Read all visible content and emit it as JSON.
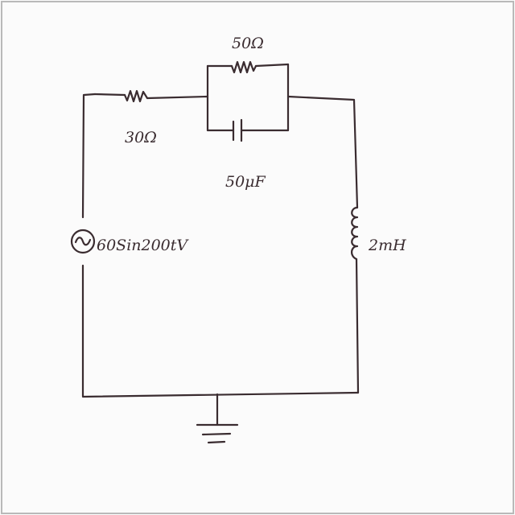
{
  "diagram": {
    "ink_color": "#3a2c30",
    "frame_color": "#b9b9b9",
    "paper_color": "#fbfbfb",
    "resistor_series": {
      "label": "30Ω"
    },
    "resistor_parallel": {
      "label": "50Ω"
    },
    "capacitor": {
      "label": "50μF"
    },
    "inductor": {
      "label": "2mH"
    },
    "source": {
      "label": "60Sin200tV",
      "icon": "ac-source-icon"
    },
    "ground": {
      "icon": "ground-icon"
    }
  }
}
